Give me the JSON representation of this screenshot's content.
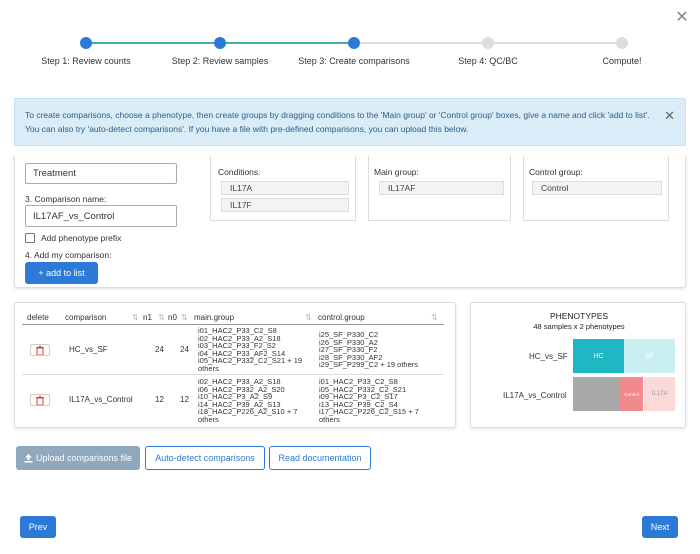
{
  "close_glyph": "✕",
  "steps": [
    {
      "label": "Step 1: Review counts"
    },
    {
      "label": "Step 2: Review samples"
    },
    {
      "label": "Step 3: Create comparisons"
    },
    {
      "label": "Step 4: QC/BC"
    },
    {
      "label": "Compute!"
    }
  ],
  "alert": {
    "line1": "To create comparisons, choose a phenotype, then create groups by dragging conditions to the 'Main group' or 'Control group' boxes, give a name and click 'add to list'.",
    "line2": "You can also try 'auto-detect comparisons'. If you have a file with pre-defined comparisons, you can upload this below.",
    "close": "✕"
  },
  "form": {
    "phenotype_value": "Treatment",
    "comparison_name_label": "3. Comparison name:",
    "comparison_name_value": "IL17AF_vs_Control",
    "prefix_label": "Add phenotype prefix",
    "add_label": "4. Add my comparison:",
    "add_button": "+ add to list"
  },
  "conditions": {
    "label": "Conditions:",
    "items": [
      "IL17A",
      "IL17F"
    ]
  },
  "main_group": {
    "label": "Main group:",
    "items": [
      "IL17AF"
    ]
  },
  "control_group": {
    "label": "Control group:",
    "items": [
      "Control"
    ]
  },
  "table": {
    "headers": [
      "delete",
      "comparison",
      "n1",
      "n0",
      "main.group",
      "control.group"
    ],
    "sort_glyph": "⇅",
    "rows": [
      {
        "comparison": "HC_vs_SF",
        "n1": "24",
        "n0": "24",
        "main_group": "i01_HAC2_P33_C2_S8\ni02_HAC2_P33_A2_S18\ni03_HAC2_P33_F2_S2\ni04_HAC2_P33_AF2_S14\ni05_HAC2_P332_C2_S21 + 19\nothers",
        "control_group": "i25_SF_P330_C2\ni26_SF_P330_A2\ni27_SF_P330_F2\ni28_SF_P330_AF2\ni29_SF_P299_C2 + 19 others"
      },
      {
        "comparison": "IL17A_vs_Control",
        "n1": "12",
        "n0": "12",
        "main_group": "i02_HAC2_P33_A2_S18\ni06_HAC2_P332_A2_S20\ni10_HAC2_P3_A2_S9\ni14_HAC2_P39_A2_S13\ni18_HAC2_P226_A2_S10 + 7\nothers",
        "control_group": "i01_HAC2_P33_C2_S8\ni05_HAC2_P332_C2_S21\ni09_HAC2_P3_C2_S17\ni13_HAC2_P39_C2_S4\ni17_HAC2_P226_C2_S15 + 7\nothers"
      }
    ]
  },
  "phenotypes": {
    "title": "PHENOTYPES",
    "subtitle": "48 samples x 2 phenotypes",
    "rows": [
      {
        "name": "HC_vs_SF",
        "segments": [
          {
            "label": "HC"
          },
          {
            "label": "SF"
          }
        ]
      },
      {
        "name": "IL17A_vs_Control",
        "segments": [
          {
            "label": ""
          },
          {
            "label": "Control"
          },
          {
            "label": "IL17A"
          }
        ]
      }
    ],
    "colors": {
      "hc": "#1fb7c3",
      "sf": "#c9eff0",
      "gray": "#a9a9a9",
      "control": "#f08a8c",
      "il17a": "#fcd9d9"
    }
  },
  "buttons": {
    "upload": "Upload comparisons file",
    "autodetect": "Auto-detect comparisons",
    "docs": "Read documentation",
    "prev": "Prev",
    "next": "Next"
  }
}
